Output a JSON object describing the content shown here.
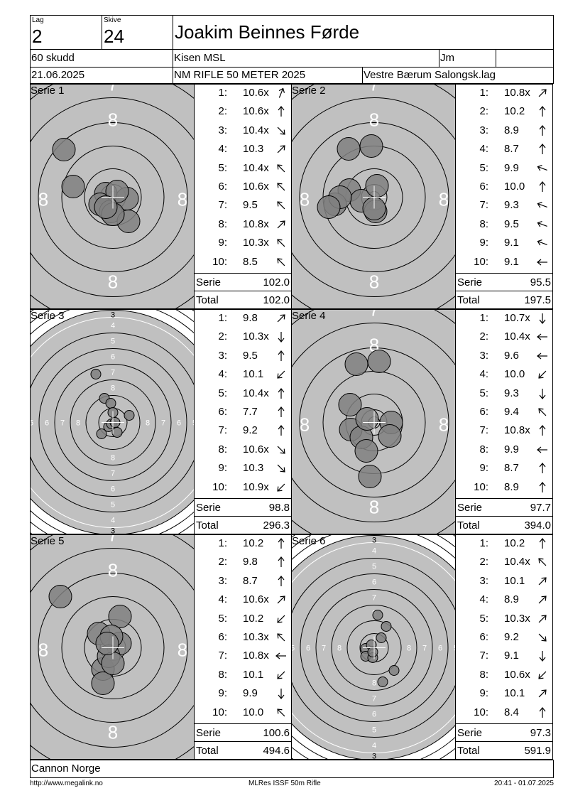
{
  "header": {
    "lag_label": "Lag",
    "lag_value": "2",
    "skive_label": "Skive",
    "skive_value": "24",
    "shooter_name": "Joakim Beinnes Førde",
    "shots_count": "60 skudd",
    "class": "Kisen MSL",
    "class_code": "Jm",
    "date": "21.06.2025",
    "event": "NM RIFLE 50 METER 2025",
    "club": "Vestre Bærum Salongsk.lag"
  },
  "series": [
    {
      "label": "Serie 1",
      "shots": [
        {
          "n": "1:",
          "v": "10.6x",
          "a": "nne"
        },
        {
          "n": "2:",
          "v": "10.6x",
          "a": "n"
        },
        {
          "n": "3:",
          "v": "10.4x",
          "a": "se"
        },
        {
          "n": "4:",
          "v": "10.3",
          "a": "ne"
        },
        {
          "n": "5:",
          "v": "10.4x",
          "a": "nw"
        },
        {
          "n": "6:",
          "v": "10.6x",
          "a": "nw"
        },
        {
          "n": "7:",
          "v": "9.5",
          "a": "nw"
        },
        {
          "n": "8:",
          "v": "10.8x",
          "a": "ne"
        },
        {
          "n": "9:",
          "v": "10.3x",
          "a": "nw"
        },
        {
          "n": "10:",
          "v": "8.5",
          "a": "nw"
        }
      ],
      "serie_label": "Serie",
      "serie_value": "102.0",
      "total_label": "Total",
      "total_value": "102.0"
    },
    {
      "label": "Serie 2",
      "shots": [
        {
          "n": "1:",
          "v": "10.8x",
          "a": "ne"
        },
        {
          "n": "2:",
          "v": "10.2",
          "a": "n"
        },
        {
          "n": "3:",
          "v": "8.9",
          "a": "n"
        },
        {
          "n": "4:",
          "v": "8.7",
          "a": "n"
        },
        {
          "n": "5:",
          "v": "9.9",
          "a": "wnw"
        },
        {
          "n": "6:",
          "v": "10.0",
          "a": "n"
        },
        {
          "n": "7:",
          "v": "9.3",
          "a": "wnw"
        },
        {
          "n": "8:",
          "v": "9.5",
          "a": "wnw"
        },
        {
          "n": "9:",
          "v": "9.1",
          "a": "wnw"
        },
        {
          "n": "10:",
          "v": "9.1",
          "a": "w"
        }
      ],
      "serie_label": "Serie",
      "serie_value": "95.5",
      "total_label": "Total",
      "total_value": "197.5"
    },
    {
      "label": "Serie 3",
      "shots": [
        {
          "n": "1:",
          "v": "9.8",
          "a": "ne"
        },
        {
          "n": "2:",
          "v": "10.3x",
          "a": "s"
        },
        {
          "n": "3:",
          "v": "9.5",
          "a": "n"
        },
        {
          "n": "4:",
          "v": "10.1",
          "a": "sw"
        },
        {
          "n": "5:",
          "v": "10.4x",
          "a": "n"
        },
        {
          "n": "6:",
          "v": "7.7",
          "a": "n"
        },
        {
          "n": "7:",
          "v": "9.2",
          "a": "n"
        },
        {
          "n": "8:",
          "v": "10.6x",
          "a": "se"
        },
        {
          "n": "9:",
          "v": "10.3",
          "a": "se"
        },
        {
          "n": "10:",
          "v": "10.9x",
          "a": "sw"
        }
      ],
      "serie_label": "Serie",
      "serie_value": "98.8",
      "total_label": "Total",
      "total_value": "296.3"
    },
    {
      "label": "Serie 4",
      "shots": [
        {
          "n": "1:",
          "v": "10.7x",
          "a": "s"
        },
        {
          "n": "2:",
          "v": "10.4x",
          "a": "w"
        },
        {
          "n": "3:",
          "v": "9.6",
          "a": "w"
        },
        {
          "n": "4:",
          "v": "10.0",
          "a": "sw"
        },
        {
          "n": "5:",
          "v": "9.3",
          "a": "s"
        },
        {
          "n": "6:",
          "v": "9.4",
          "a": "nw"
        },
        {
          "n": "7:",
          "v": "10.8x",
          "a": "n"
        },
        {
          "n": "8:",
          "v": "9.9",
          "a": "w"
        },
        {
          "n": "9:",
          "v": "8.7",
          "a": "n"
        },
        {
          "n": "10:",
          "v": "8.9",
          "a": "n"
        }
      ],
      "serie_label": "Serie",
      "serie_value": "97.7",
      "total_label": "Total",
      "total_value": "394.0"
    },
    {
      "label": "Serie 5",
      "shots": [
        {
          "n": "1:",
          "v": "10.2",
          "a": "n"
        },
        {
          "n": "2:",
          "v": "9.8",
          "a": "n"
        },
        {
          "n": "3:",
          "v": "8.7",
          "a": "n"
        },
        {
          "n": "4:",
          "v": "10.6x",
          "a": "ne"
        },
        {
          "n": "5:",
          "v": "10.2",
          "a": "sw"
        },
        {
          "n": "6:",
          "v": "10.3x",
          "a": "nw"
        },
        {
          "n": "7:",
          "v": "10.8x",
          "a": "w"
        },
        {
          "n": "8:",
          "v": "10.1",
          "a": "sw"
        },
        {
          "n": "9:",
          "v": "9.9",
          "a": "s"
        },
        {
          "n": "10:",
          "v": "10.0",
          "a": "nw"
        }
      ],
      "serie_label": "Serie",
      "serie_value": "100.6",
      "total_label": "Total",
      "total_value": "494.6"
    },
    {
      "label": "Serie 6",
      "shots": [
        {
          "n": "1:",
          "v": "10.2",
          "a": "n"
        },
        {
          "n": "2:",
          "v": "10.4x",
          "a": "nw"
        },
        {
          "n": "3:",
          "v": "10.1",
          "a": "ne"
        },
        {
          "n": "4:",
          "v": "8.9",
          "a": "ne"
        },
        {
          "n": "5:",
          "v": "10.3x",
          "a": "ne"
        },
        {
          "n": "6:",
          "v": "9.2",
          "a": "se"
        },
        {
          "n": "7:",
          "v": "9.1",
          "a": "s"
        },
        {
          "n": "8:",
          "v": "10.6x",
          "a": "sw"
        },
        {
          "n": "9:",
          "v": "10.1",
          "a": "ne"
        },
        {
          "n": "10:",
          "v": "8.4",
          "a": "n"
        }
      ],
      "serie_label": "Serie",
      "serie_value": "97.3",
      "total_label": "Total",
      "total_value": "591.9"
    }
  ],
  "footer": {
    "organizer": "Cannon Norge",
    "url": "http://www.megalink.no",
    "software": "MLRes ISSF 50m Rifle",
    "timestamp": "20:41 - 01.07.2025"
  }
}
